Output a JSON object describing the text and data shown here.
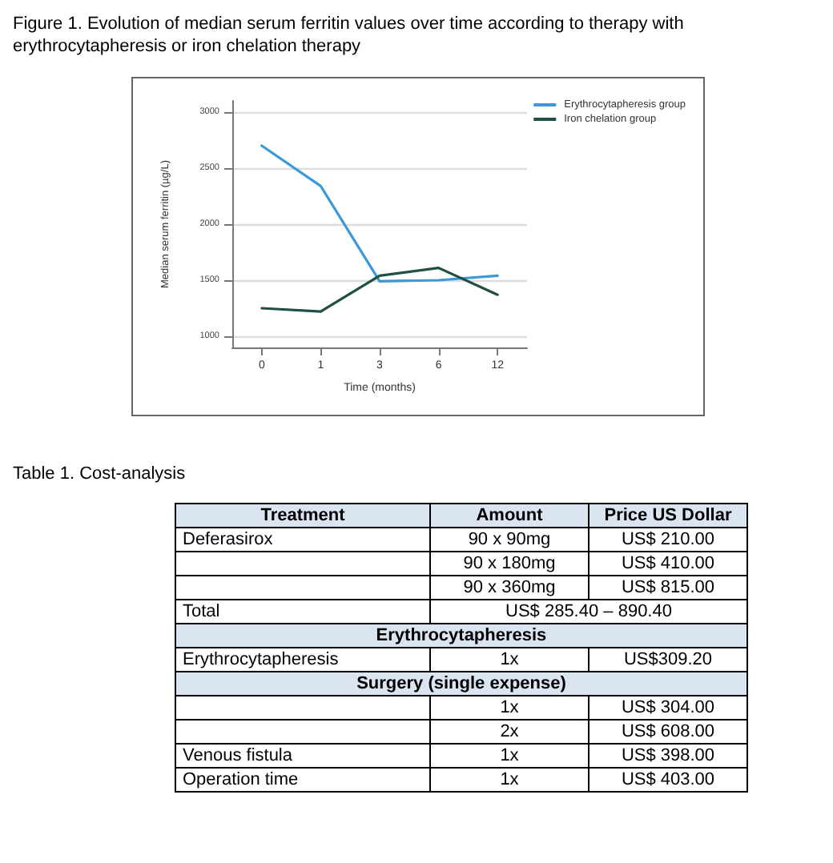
{
  "chart_data": [
    {
      "type": "line",
      "title": "Figure 1. Evolution of median serum ferritin values over time according to therapy with erythrocytapheresis or iron chelation therapy",
      "xlabel": "Time (months)",
      "ylabel": "Median serum ferritin (µg/L)",
      "categories": [
        "0",
        "1",
        "3",
        "6",
        "12"
      ],
      "series": [
        {
          "name": "Erythrocytapheresis group",
          "color": "#3a9ad9",
          "values": [
            2700,
            2340,
            1490,
            1500,
            1540
          ]
        },
        {
          "name": "Iron chelation group",
          "color": "#1f4f45",
          "values": [
            1250,
            1220,
            1540,
            1610,
            1370
          ]
        }
      ],
      "ylim": [
        900,
        3100
      ],
      "yticks": [
        1000,
        1500,
        2000,
        2500,
        3000
      ],
      "grid": "y",
      "legend": "top right",
      "marker": "none",
      "line_style": "solid"
    },
    {
      "type": "other",
      "title": "Table 1. Cost-analysis",
      "categories": [
        "Treatment",
        "Amount",
        "Price US Dollar"
      ],
      "cell_labels": [
        [
          "Deferasirox",
          "90 x 90mg",
          "US$ 210.00"
        ],
        [
          null,
          "90 x 180mg",
          "US$ 410.00"
        ],
        [
          null,
          "90 x 360mg",
          "US$ 815.00"
        ],
        [
          "Total",
          "US$ 285.40 – 890.40"
        ],
        [
          "Erythrocytapheresis"
        ],
        [
          "Erythrocytapheresis",
          "1x",
          "US$309.20"
        ],
        [
          "Surgery (single expense)"
        ],
        [
          null,
          "1x",
          "US$ 304.00"
        ],
        [
          null,
          "2x",
          "US$ 608.00"
        ],
        [
          "Venous fistula",
          "1x",
          "US$ 398.00"
        ],
        [
          "Operation time",
          "1x",
          "US$ 403.00"
        ]
      ]
    }
  ]
}
